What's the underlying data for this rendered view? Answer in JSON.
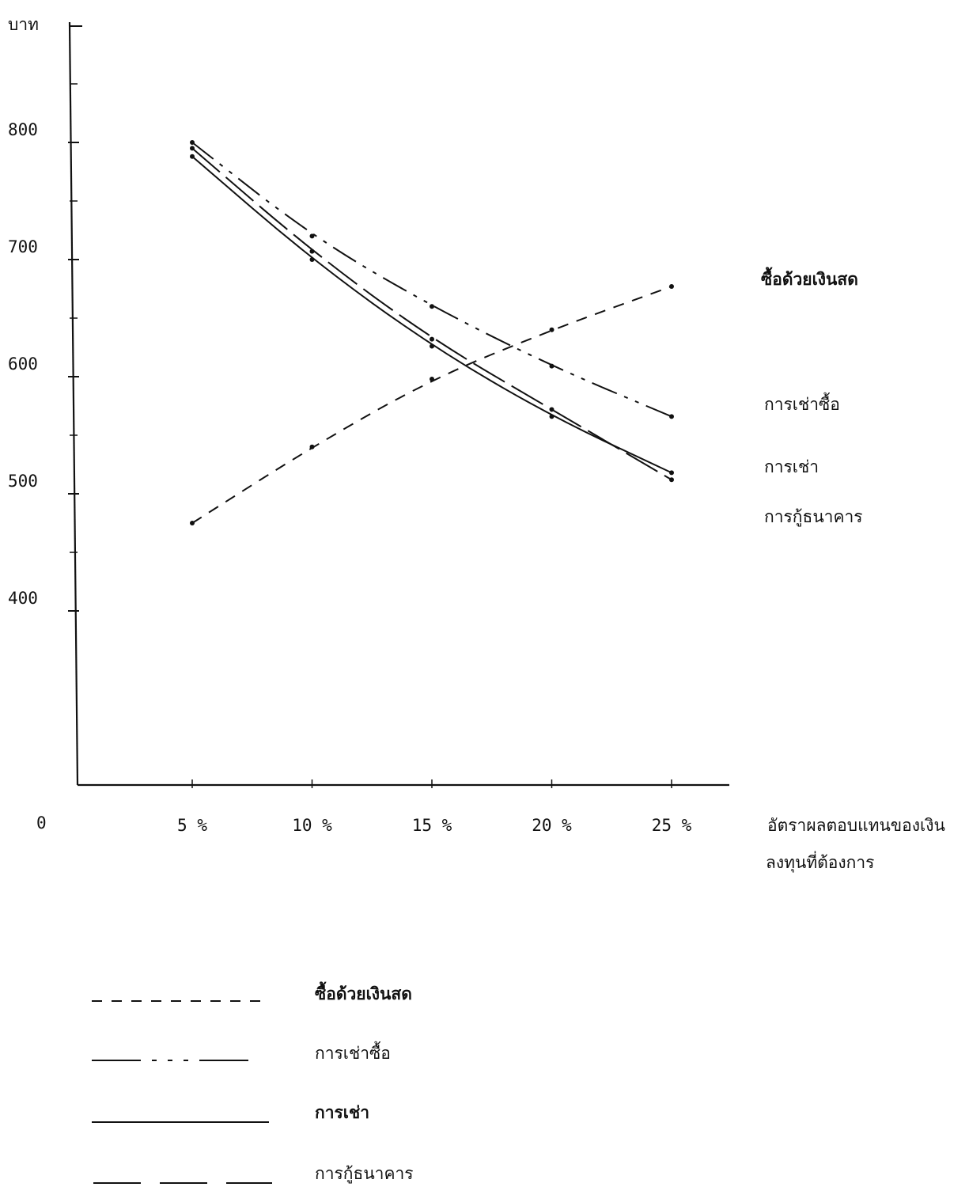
{
  "chart_data": {
    "type": "line",
    "ylabel": "บาท",
    "origin_label": "0",
    "x_tick_labels": [
      "5 %",
      "10 %",
      "15 %",
      "20 %",
      "25 %"
    ],
    "y_tick_labels": [
      "400",
      "500",
      "600",
      "700",
      "800"
    ],
    "xlabel_lines": [
      "อัตราผลตอบแทนของเงิน",
      "ลงทุนที่ต้องการ"
    ],
    "x": [
      5,
      10,
      15,
      20,
      25
    ],
    "ylim": [
      300,
      900
    ],
    "series": [
      {
        "name": "ซื้อด้วยเงินสด",
        "dash": "dashed",
        "values": [
          475,
          540,
          598,
          640,
          677
        ]
      },
      {
        "name": "การเช่าซื้อ",
        "dash": "dash-dot",
        "values": [
          800,
          720,
          660,
          609,
          566
        ]
      },
      {
        "name": "การเช่า",
        "dash": "solid",
        "values": [
          788,
          700,
          626,
          566,
          518
        ]
      },
      {
        "name": "การกู้ธนาคาร",
        "dash": "long-dash",
        "values": [
          795,
          707,
          632,
          572,
          512
        ]
      }
    ],
    "right_labels": [
      "ซื้อด้วยเงินสด",
      "การเช่าซื้อ",
      "การเช่า",
      "การกู้ธนาคาร"
    ],
    "legend": {
      "placement": "bottom-left",
      "entries": [
        {
          "label": "ซื้อด้วยเงินสด",
          "dash": "dashed"
        },
        {
          "label": "การเช่าซื้อ",
          "dash": "dash-dot"
        },
        {
          "label": "การเช่า",
          "dash": "solid"
        },
        {
          "label": "การกู้ธนาคาร",
          "dash": "long-dash"
        }
      ]
    }
  }
}
